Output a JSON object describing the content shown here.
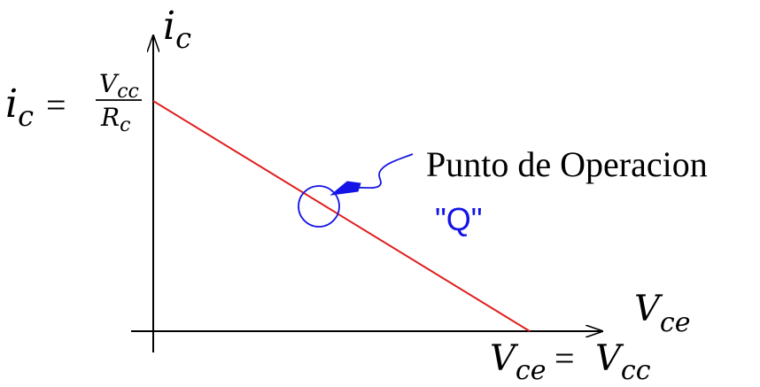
{
  "axes": {
    "y_var": "i",
    "y_sub": "c",
    "x_var": "V",
    "x_sub": "ce"
  },
  "y_intercept": {
    "lhs_var": "i",
    "lhs_sub": "c",
    "eq": "=",
    "num_var": "V",
    "num_sub": "cc",
    "den_var": "R",
    "den_sub": "c"
  },
  "x_intercept": {
    "lhs_var": "V",
    "lhs_sub": "ce",
    "eq": "=",
    "rhs_var": "V",
    "rhs_sub": "cc"
  },
  "operating_point": {
    "label": "Punto de Operacion",
    "symbol": "\"Q\""
  },
  "colors": {
    "load_line": "#e02020",
    "q_marker": "#1414e6",
    "axes": "#000000"
  }
}
